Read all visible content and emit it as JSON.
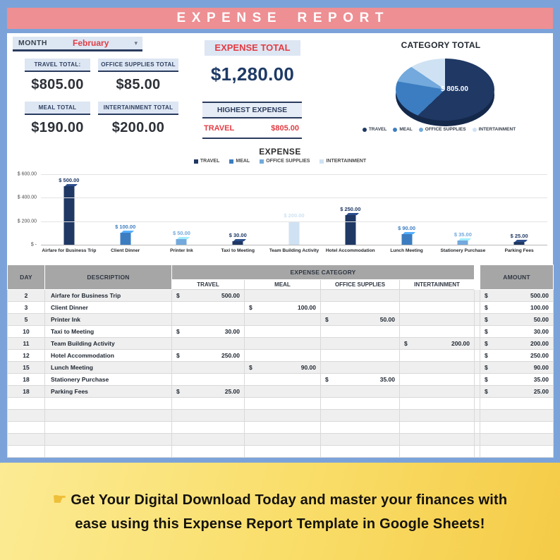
{
  "title": "EXPENSE REPORT",
  "controls": {
    "month_label": "MONTH",
    "month_value": "February",
    "dropdown_icon": "▾"
  },
  "summary": {
    "cards": [
      {
        "label": "TRAVEL TOTAL:",
        "value": "$805.00"
      },
      {
        "label": "OFFICE SUPPLIES TOTAL",
        "value": "$85.00"
      },
      {
        "label": "MEAL TOTAL",
        "value": "$190.00"
      },
      {
        "label": "INTERTAINMENT TOTAL",
        "value": "$200.00"
      }
    ],
    "expense_total": {
      "label": "EXPENSE TOTAL",
      "value": "$1,280.00"
    },
    "highest_expense": {
      "label": "HIGHEST EXPENSE",
      "category": "TRAVEL",
      "value": "$805.00"
    }
  },
  "chart_data": [
    {
      "type": "pie",
      "title": "CATEGORY TOTAL",
      "labels": [
        "TRAVEL",
        "MEAL",
        "OFFICE SUPPLIES",
        "INTERTAINMENT"
      ],
      "values": [
        805,
        190,
        85,
        200
      ],
      "colors": [
        "#1f3864",
        "#3c7dc1",
        "#73a9dc",
        "#cfe2f3"
      ],
      "data_label": "$ 805.00",
      "legend_position": "bottom"
    },
    {
      "type": "bar",
      "title": "EXPENSE",
      "legend": [
        "TRAVEL",
        "MEAL",
        "OFFICE SUPPLIES",
        "INTERTAINMENT"
      ],
      "colors": [
        "#1f3864",
        "#3c7dc1",
        "#73a9dc",
        "#cfe2f3"
      ],
      "categories": [
        "Airfare for Business Trip",
        "Client Dinner",
        "Printer Ink",
        "Taxi to Meeting",
        "Team Building Activity",
        "Hotel Accommodation",
        "Lunch Meeting",
        "Stationery Purchase",
        "Parking Fees"
      ],
      "values": [
        500,
        100,
        50,
        30,
        200,
        250,
        90,
        35,
        25
      ],
      "bar_category_index": [
        0,
        1,
        2,
        0,
        3,
        0,
        1,
        2,
        0
      ],
      "bar_labels": [
        "$ 500.00",
        "$ 100.00",
        "$ 50.00",
        "$ 30.00",
        "$ 200.00",
        "$ 250.00",
        "$ 90.00",
        "$ 35.00",
        "$ 25.00"
      ],
      "y_ticks": [
        "$ 600.00",
        "$ 400.00",
        "$ 200.00",
        "$ -"
      ],
      "ylim": [
        0,
        600
      ],
      "grid": true,
      "legend_position": "top"
    }
  ],
  "table": {
    "currency_symbol": "$",
    "header": {
      "day": "DAY",
      "description": "DESCRIPTION",
      "expense_category": "EXPENSE CATEGORY",
      "columns": [
        "TRAVEL",
        "MEAL",
        "OFFICE SUPPLIES",
        "INTERTAINMENT"
      ],
      "amount": "AMOUNT"
    },
    "rows": [
      {
        "day": "2",
        "description": "Airfare for Business Trip",
        "values": [
          "500.00",
          "",
          "",
          ""
        ],
        "amount": "500.00"
      },
      {
        "day": "3",
        "description": "Client Dinner",
        "values": [
          "",
          "100.00",
          "",
          ""
        ],
        "amount": "100.00"
      },
      {
        "day": "5",
        "description": "Printer Ink",
        "values": [
          "",
          "",
          "50.00",
          ""
        ],
        "amount": "50.00"
      },
      {
        "day": "10",
        "description": "Taxi to Meeting",
        "values": [
          "30.00",
          "",
          "",
          ""
        ],
        "amount": "30.00"
      },
      {
        "day": "11",
        "description": "Team Building Activity",
        "values": [
          "",
          "",
          "",
          "200.00"
        ],
        "amount": "200.00"
      },
      {
        "day": "12",
        "description": "Hotel Accommodation",
        "values": [
          "250.00",
          "",
          "",
          ""
        ],
        "amount": "250.00"
      },
      {
        "day": "15",
        "description": "Lunch Meeting",
        "values": [
          "",
          "90.00",
          "",
          ""
        ],
        "amount": "90.00"
      },
      {
        "day": "18",
        "description": "Stationery Purchase",
        "values": [
          "",
          "",
          "35.00",
          ""
        ],
        "amount": "35.00"
      },
      {
        "day": "18",
        "description": "Parking Fees",
        "values": [
          "25.00",
          "",
          "",
          ""
        ],
        "amount": "25.00"
      }
    ],
    "empty_row_count": 5
  },
  "footer": {
    "pointer_icon": "☛",
    "text": "Get Your Digital Download Today and master your finances with ease using this Expense Report Template in Google Sheets!"
  },
  "colors": {
    "background_blue": "#7ca3d9",
    "accent_pink": "#ee8f93",
    "navy": "#1f3864",
    "red": "#e23c44",
    "table_header_gray": "#a6a6a6",
    "category_colors": [
      "#1f3864",
      "#3c7dc1",
      "#73a9dc",
      "#cfe2f3"
    ]
  }
}
